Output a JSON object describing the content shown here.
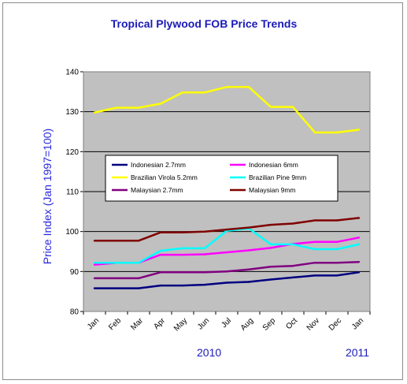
{
  "chart_data": {
    "type": "line",
    "title": "Tropical Plywood FOB Price Trends",
    "ylabel": "Price Index (Jan 1997=100)",
    "xlabel": "",
    "ylim": [
      80,
      140
    ],
    "yticks": [
      "80",
      "90",
      "100",
      "110",
      "120",
      "130",
      "140"
    ],
    "grid": "horizontal",
    "categories": [
      "Jan",
      "Feb",
      "Mar",
      "Apr",
      "May",
      "Jun",
      "Jul",
      "Aug",
      "Sep",
      "Oct",
      "Nov",
      "Dec",
      "Jan"
    ],
    "year_labels": [
      "2010",
      "2011"
    ],
    "legend_position": "center",
    "colors": {
      "plot_background": "#c0c0c0",
      "title": "#1a1ab8",
      "ylabel": "#2a2ae0"
    },
    "series": [
      {
        "name": "Indonesian 2.7mm",
        "color": "#000080",
        "values": [
          85.8,
          85.8,
          85.8,
          86.5,
          86.5,
          86.7,
          87.2,
          87.4,
          88.0,
          88.5,
          89.0,
          89.0,
          89.8
        ]
      },
      {
        "name": "Indonesian 6mm",
        "color": "#ff00ff",
        "values": [
          91.7,
          92.2,
          92.2,
          94.2,
          94.2,
          94.3,
          94.8,
          95.3,
          95.9,
          96.9,
          97.4,
          97.4,
          98.5
        ]
      },
      {
        "name": "Brazilian Virola 5.2mm",
        "color": "#ffff00",
        "values": [
          129.8,
          131.0,
          131.0,
          132.0,
          134.8,
          134.8,
          136.2,
          136.2,
          131.2,
          131.2,
          124.8,
          124.8,
          125.5
        ]
      },
      {
        "name": "Brazilian Pine 9mm",
        "color": "#00ffff",
        "values": [
          92.2,
          92.2,
          92.2,
          95.2,
          95.8,
          95.8,
          100.2,
          100.8,
          96.8,
          96.8,
          95.6,
          95.6,
          96.8
        ]
      },
      {
        "name": "Malaysian 2.7mm",
        "color": "#800080",
        "values": [
          88.3,
          88.3,
          88.3,
          89.8,
          89.8,
          89.8,
          90.0,
          90.5,
          91.2,
          91.4,
          92.2,
          92.2,
          92.4
        ]
      },
      {
        "name": "Malaysian 9mm",
        "color": "#800000",
        "values": [
          97.7,
          97.7,
          97.7,
          99.8,
          99.8,
          100.0,
          100.5,
          101.0,
          101.7,
          102.0,
          102.8,
          102.8,
          103.4
        ]
      }
    ]
  }
}
